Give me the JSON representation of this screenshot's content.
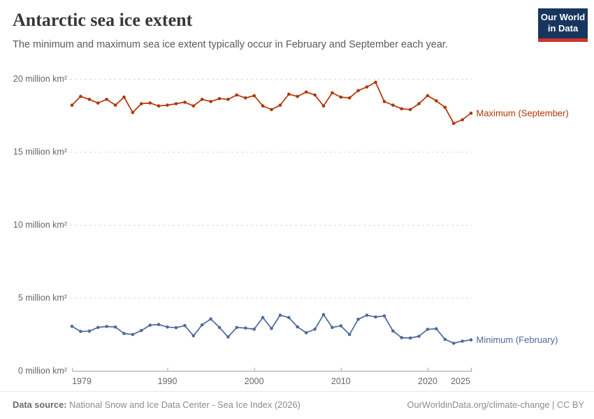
{
  "header": {
    "title": "Antarctic sea ice extent",
    "subtitle": "The minimum and maximum sea ice extent typically occur in February and September each year.",
    "logo": {
      "line1": "Our World",
      "line2": "in Data"
    }
  },
  "colors": {
    "maximum_series": "#b13507",
    "minimum_series": "#4c6a9c",
    "gridline": "#d9d9d9",
    "axis": "#a3a3a3",
    "tick_label": "#666666",
    "logo_background": "#18365d",
    "logo_accent": "#d0342c"
  },
  "chart_data": {
    "type": "line",
    "title": "Antarctic sea ice extent",
    "xlabel": "",
    "ylabel": "million km²",
    "ylim": [
      0,
      20
    ],
    "xlim": [
      1979,
      2025
    ],
    "grid": "horizontal-dashed",
    "legend_position": "right-of-line-ends",
    "yticks": [
      0,
      5,
      10,
      15,
      20
    ],
    "ytick_labels": [
      "0 million km²",
      "5 million km²",
      "10 million km²",
      "15 million km²",
      "20 million km²"
    ],
    "xticks": [
      1979,
      1990,
      2000,
      2010,
      2020,
      2025
    ],
    "xtick_labels": [
      "1979",
      "1990",
      "2000",
      "2010",
      "2020",
      "2025"
    ],
    "x": [
      1979,
      1980,
      1981,
      1982,
      1983,
      1984,
      1985,
      1986,
      1987,
      1988,
      1989,
      1990,
      1991,
      1992,
      1993,
      1994,
      1995,
      1996,
      1997,
      1998,
      1999,
      2000,
      2001,
      2002,
      2003,
      2004,
      2005,
      2006,
      2007,
      2008,
      2009,
      2010,
      2011,
      2012,
      2013,
      2014,
      2015,
      2016,
      2017,
      2018,
      2019,
      2020,
      2021,
      2022,
      2023,
      2024,
      2025
    ],
    "series": [
      {
        "name": "Maximum (September)",
        "color": "#b13507",
        "values": [
          18.2,
          18.8,
          18.6,
          18.35,
          18.6,
          18.2,
          18.75,
          17.7,
          18.3,
          18.35,
          18.15,
          18.2,
          18.3,
          18.4,
          18.15,
          18.6,
          18.45,
          18.65,
          18.6,
          18.9,
          18.7,
          18.85,
          18.15,
          17.9,
          18.2,
          18.95,
          18.8,
          19.1,
          18.9,
          18.15,
          19.05,
          18.75,
          18.7,
          19.2,
          19.45,
          19.77,
          18.45,
          18.2,
          17.95,
          17.9,
          18.3,
          18.85,
          18.5,
          18.05,
          16.95,
          17.2,
          17.65
        ]
      },
      {
        "name": "Minimum (February)",
        "color": "#4c6a9c",
        "values": [
          3.05,
          2.7,
          2.72,
          2.97,
          3.04,
          3.0,
          2.56,
          2.49,
          2.76,
          3.13,
          3.17,
          3.0,
          2.95,
          3.1,
          2.4,
          3.15,
          3.55,
          2.97,
          2.32,
          2.97,
          2.93,
          2.85,
          3.65,
          2.9,
          3.81,
          3.65,
          3.01,
          2.61,
          2.85,
          3.85,
          2.97,
          3.08,
          2.49,
          3.53,
          3.81,
          3.69,
          3.76,
          2.73,
          2.27,
          2.25,
          2.37,
          2.84,
          2.88,
          2.16,
          1.89,
          2.03,
          2.12
        ]
      }
    ]
  },
  "footer": {
    "source_label": "Data source:",
    "source_text": " National Snow and Ice Data Center - Sea Ice Index (2026)",
    "right_text": "OurWorldinData.org/climate-change | CC BY"
  }
}
